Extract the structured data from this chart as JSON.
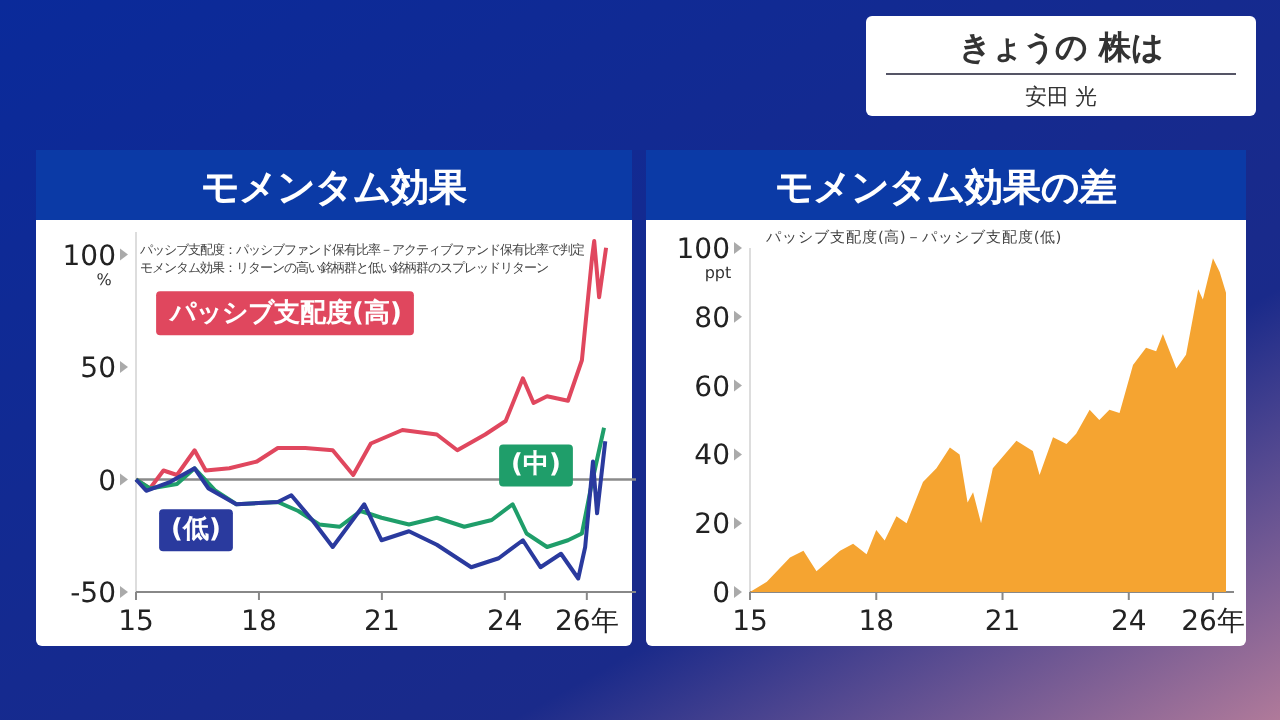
{
  "chart_data": [
    {
      "type": "other",
      "title": "きょうの 株は",
      "subtitle": "安田 光"
    },
    {
      "type": "line",
      "title": "モメンタム効果",
      "ylabel": "%",
      "legend": false,
      "annotations": [
        "パッシブ支配度：パッシブファンド保有比率－アクティブファンド保有比率で判定",
        "モメンタム効果：リターンの高い銘柄群と低い銘柄群のスプレッドリターン"
      ],
      "xlim": [
        15,
        27.2
      ],
      "xticks": [
        15,
        18,
        21,
        24,
        {
          "value": 26,
          "label": "26年"
        }
      ],
      "ylim": [
        -50,
        110
      ],
      "yticks": [
        -50,
        0,
        50,
        100
      ],
      "ref_lines": [
        {
          "axis": "y",
          "value": 0,
          "color": "#8a8a8a"
        }
      ],
      "series": [
        {
          "name": "パッシブ支配度(高)",
          "color": "#e0475e",
          "x": [
            15.0,
            15.34,
            15.67,
            16.0,
            16.43,
            16.7,
            17.28,
            17.95,
            18.46,
            19.13,
            19.8,
            20.3,
            20.73,
            21.5,
            22.34,
            22.84,
            23.52,
            24.02,
            24.44,
            24.7,
            25.03,
            25.54,
            25.88,
            26.13,
            26.18,
            26.3,
            26.47
          ],
          "values": [
            0,
            -4,
            4,
            2,
            13,
            4,
            5,
            8,
            14,
            14,
            13,
            2,
            16,
            22,
            20,
            13,
            20,
            26,
            45,
            34,
            37,
            35,
            53,
            99,
            106,
            81,
            103
          ]
        },
        {
          "name": "(中)",
          "color": "#1f9e6a",
          "x": [
            15.0,
            15.34,
            16.0,
            16.43,
            16.94,
            17.45,
            18.46,
            18.96,
            19.47,
            19.97,
            20.48,
            20.99,
            21.66,
            22.34,
            23.01,
            23.68,
            24.19,
            24.53,
            25.03,
            25.54,
            25.88,
            26.13,
            26.42
          ],
          "values": [
            0,
            -4,
            -2,
            5,
            -5,
            -11,
            -10,
            -14,
            -20,
            -21,
            -14,
            -17,
            -20,
            -17,
            -21,
            -18,
            -11,
            -24,
            -30,
            -27,
            -24,
            -1,
            23
          ]
        },
        {
          "name": "(低)",
          "color": "#2a3a9e",
          "x": [
            15.0,
            15.25,
            15.84,
            16.43,
            16.77,
            17.45,
            18.46,
            18.79,
            19.3,
            19.8,
            20.57,
            20.99,
            21.66,
            22.34,
            23.18,
            23.85,
            24.44,
            24.87,
            25.37,
            25.79,
            25.96,
            26.15,
            26.25,
            26.45
          ],
          "values": [
            0,
            -5,
            -1,
            5,
            -4,
            -11,
            -10,
            -7,
            -18,
            -30,
            -11,
            -27,
            -23,
            -29,
            -39,
            -35,
            -27,
            -39,
            -33,
            -44,
            -30,
            8,
            -15,
            17
          ]
        }
      ]
    },
    {
      "type": "area",
      "title": "モメンタム効果の差",
      "subtitle": "パッシブ支配度(高)－パッシブ支配度(低)",
      "ylabel": "ppt",
      "xlim": [
        15,
        26.5
      ],
      "xticks": [
        15,
        18,
        21,
        24,
        {
          "value": 26,
          "label": "26年"
        }
      ],
      "ylim": [
        0,
        100
      ],
      "yticks": [
        0,
        20,
        40,
        60,
        80,
        100
      ],
      "series": [
        {
          "color": "#f5a431",
          "x": [
            15.0,
            15.4,
            15.95,
            16.27,
            16.58,
            17.14,
            17.45,
            17.77,
            18.0,
            18.2,
            18.48,
            18.72,
            19.11,
            19.43,
            19.75,
            19.98,
            20.17,
            20.3,
            20.49,
            20.77,
            21.33,
            21.72,
            21.88,
            22.2,
            22.52,
            22.75,
            23.07,
            23.3,
            23.54,
            23.78,
            24.1,
            24.41,
            24.65,
            24.81,
            25.13,
            25.36,
            25.65,
            25.76,
            26.0,
            26.16,
            26.31
          ],
          "values": [
            0,
            3,
            10,
            12,
            6,
            12,
            14,
            11,
            18,
            15,
            22,
            20,
            32,
            36,
            42,
            40,
            26,
            29,
            20,
            36,
            44,
            41,
            34,
            45,
            43,
            46,
            53,
            50,
            53,
            52,
            66,
            71,
            70,
            75,
            65,
            69,
            88,
            85,
            97,
            93,
            87
          ]
        }
      ]
    }
  ]
}
